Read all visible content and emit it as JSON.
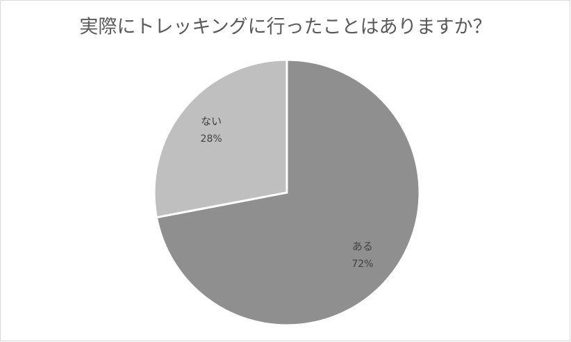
{
  "chart_data": {
    "type": "pie",
    "title": "実際にトレッキングに行ったことはありますか？",
    "categories": [
      "ある",
      "ない"
    ],
    "values": [
      72,
      28
    ],
    "value_labels": [
      "72%",
      "28%"
    ],
    "colors": [
      "#8f8f8f",
      "#bfbfbf"
    ]
  }
}
